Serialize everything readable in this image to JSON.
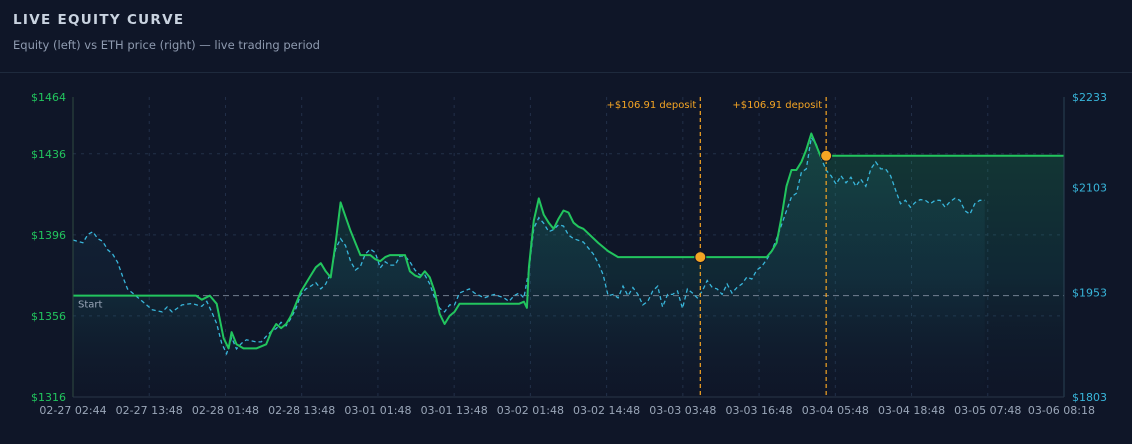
{
  "header": {
    "title": "LIVE EQUITY CURVE",
    "subtitle": "Equity (left) vs ETH price (right) — live trading period"
  },
  "chart_data": {
    "type": "line",
    "colors": {
      "equity": "#22c55e",
      "eth": "#38b6db",
      "deposit": "#f5a524",
      "start_line": "#8a96a8",
      "grid": "#223049"
    },
    "x_ticks": [
      "02-27 02:44",
      "02-27 13:48",
      "02-28 01:48",
      "02-28 13:48",
      "03-01 01:48",
      "03-01 13:48",
      "03-02 01:48",
      "03-02 14:48",
      "03-03 03:48",
      "03-03 16:48",
      "03-04 05:48",
      "03-04 18:48",
      "03-05 07:48",
      "03-06 08:18"
    ],
    "y_left": {
      "ticks": [
        "$1464",
        "$1436",
        "$1396",
        "$1356",
        "$1316"
      ],
      "range": [
        1316,
        1464
      ]
    },
    "y_right": {
      "ticks": [
        "$2233",
        "$2103",
        "$1953",
        "$1803"
      ],
      "range": [
        1803,
        2233
      ]
    },
    "start_label": "Start",
    "start_value": 1366,
    "x_range": [
      0,
      10
    ],
    "deposits": [
      {
        "x": 6.33,
        "label": "+$106.91 deposit",
        "equity": 1385
      },
      {
        "x": 7.6,
        "label": "+$106.91 deposit",
        "equity": 1435
      }
    ],
    "series": [
      {
        "name": "Equity",
        "axis": "left",
        "points": [
          [
            0,
            1366
          ],
          [
            1.24,
            1366
          ],
          [
            1.3,
            1364
          ],
          [
            1.38,
            1366
          ],
          [
            1.45,
            1362
          ],
          [
            1.52,
            1345
          ],
          [
            1.57,
            1340
          ],
          [
            1.6,
            1348
          ],
          [
            1.65,
            1342
          ],
          [
            1.72,
            1340
          ],
          [
            1.85,
            1340
          ],
          [
            1.95,
            1342
          ],
          [
            2.0,
            1348
          ],
          [
            2.05,
            1352
          ],
          [
            2.1,
            1350
          ],
          [
            2.15,
            1352
          ],
          [
            2.2,
            1356
          ],
          [
            2.3,
            1368
          ],
          [
            2.4,
            1376
          ],
          [
            2.45,
            1380
          ],
          [
            2.5,
            1382
          ],
          [
            2.55,
            1378
          ],
          [
            2.6,
            1375
          ],
          [
            2.65,
            1392
          ],
          [
            2.7,
            1412
          ],
          [
            2.75,
            1405
          ],
          [
            2.8,
            1398
          ],
          [
            2.85,
            1392
          ],
          [
            2.9,
            1386
          ],
          [
            3.0,
            1386
          ],
          [
            3.05,
            1384
          ],
          [
            3.1,
            1383
          ],
          [
            3.15,
            1385
          ],
          [
            3.2,
            1386
          ],
          [
            3.35,
            1386
          ],
          [
            3.4,
            1378
          ],
          [
            3.45,
            1376
          ],
          [
            3.5,
            1375
          ],
          [
            3.55,
            1378
          ],
          [
            3.6,
            1375
          ],
          [
            3.65,
            1368
          ],
          [
            3.7,
            1357
          ],
          [
            3.75,
            1352
          ],
          [
            3.8,
            1356
          ],
          [
            3.85,
            1358
          ],
          [
            3.9,
            1362
          ],
          [
            4.3,
            1362
          ],
          [
            4.5,
            1362
          ],
          [
            4.55,
            1363
          ],
          [
            4.58,
            1360
          ],
          [
            4.6,
            1380
          ],
          [
            4.65,
            1403
          ],
          [
            4.7,
            1414
          ],
          [
            4.75,
            1406
          ],
          [
            4.8,
            1402
          ],
          [
            4.85,
            1399
          ],
          [
            4.9,
            1404
          ],
          [
            4.95,
            1408
          ],
          [
            5.0,
            1407
          ],
          [
            5.05,
            1402
          ],
          [
            5.1,
            1400
          ],
          [
            5.15,
            1399
          ],
          [
            5.3,
            1392
          ],
          [
            5.4,
            1388
          ],
          [
            5.5,
            1385
          ],
          [
            5.9,
            1385
          ],
          [
            6.33,
            1385
          ],
          [
            7.0,
            1385
          ],
          [
            7.05,
            1388
          ],
          [
            7.1,
            1392
          ],
          [
            7.15,
            1405
          ],
          [
            7.2,
            1420
          ],
          [
            7.25,
            1428
          ],
          [
            7.3,
            1428
          ],
          [
            7.35,
            1432
          ],
          [
            7.4,
            1438
          ],
          [
            7.45,
            1446
          ],
          [
            7.5,
            1440
          ],
          [
            7.55,
            1434
          ],
          [
            7.6,
            1435
          ],
          [
            10,
            1435
          ]
        ]
      },
      {
        "name": "ETH",
        "axis": "right",
        "points": [
          [
            0,
            2028
          ],
          [
            0.1,
            2024
          ],
          [
            0.15,
            2036
          ],
          [
            0.2,
            2040
          ],
          [
            0.25,
            2030
          ],
          [
            0.3,
            2026
          ],
          [
            0.35,
            2014
          ],
          [
            0.4,
            2008
          ],
          [
            0.45,
            1996
          ],
          [
            0.5,
            1976
          ],
          [
            0.55,
            1958
          ],
          [
            0.6,
            1952
          ],
          [
            0.7,
            1940
          ],
          [
            0.8,
            1928
          ],
          [
            0.9,
            1925
          ],
          [
            0.95,
            1932
          ],
          [
            1.0,
            1925
          ],
          [
            1.05,
            1930
          ],
          [
            1.1,
            1935
          ],
          [
            1.2,
            1937
          ],
          [
            1.3,
            1933
          ],
          [
            1.35,
            1940
          ],
          [
            1.4,
            1925
          ],
          [
            1.45,
            1908
          ],
          [
            1.5,
            1880
          ],
          [
            1.55,
            1865
          ],
          [
            1.6,
            1888
          ],
          [
            1.65,
            1872
          ],
          [
            1.7,
            1880
          ],
          [
            1.75,
            1885
          ],
          [
            1.85,
            1882
          ],
          [
            1.9,
            1882
          ],
          [
            1.95,
            1890
          ],
          [
            2.0,
            1897
          ],
          [
            2.05,
            1901
          ],
          [
            2.1,
            1910
          ],
          [
            2.15,
            1905
          ],
          [
            2.2,
            1916
          ],
          [
            2.25,
            1930
          ],
          [
            2.3,
            1950
          ],
          [
            2.35,
            1958
          ],
          [
            2.4,
            1962
          ],
          [
            2.45,
            1967
          ],
          [
            2.5,
            1958
          ],
          [
            2.55,
            1965
          ],
          [
            2.6,
            1980
          ],
          [
            2.65,
            2015
          ],
          [
            2.7,
            2030
          ],
          [
            2.75,
            2020
          ],
          [
            2.8,
            1998
          ],
          [
            2.85,
            1985
          ],
          [
            2.9,
            1990
          ],
          [
            2.95,
            2008
          ],
          [
            3.0,
            2015
          ],
          [
            3.05,
            2010
          ],
          [
            3.1,
            1988
          ],
          [
            3.15,
            1997
          ],
          [
            3.2,
            1992
          ],
          [
            3.25,
            1992
          ],
          [
            3.3,
            2005
          ],
          [
            3.35,
            2005
          ],
          [
            3.4,
            1997
          ],
          [
            3.45,
            1985
          ],
          [
            3.5,
            1978
          ],
          [
            3.55,
            1978
          ],
          [
            3.6,
            1965
          ],
          [
            3.65,
            1945
          ],
          [
            3.7,
            1930
          ],
          [
            3.75,
            1925
          ],
          [
            3.8,
            1935
          ],
          [
            3.85,
            1935
          ],
          [
            3.9,
            1952
          ],
          [
            4.0,
            1958
          ],
          [
            4.05,
            1952
          ],
          [
            4.15,
            1945
          ],
          [
            4.25,
            1950
          ],
          [
            4.35,
            1945
          ],
          [
            4.4,
            1940
          ],
          [
            4.45,
            1948
          ],
          [
            4.5,
            1952
          ],
          [
            4.55,
            1945
          ],
          [
            4.6,
            1985
          ],
          [
            4.65,
            2045
          ],
          [
            4.7,
            2060
          ],
          [
            4.75,
            2052
          ],
          [
            4.8,
            2040
          ],
          [
            4.85,
            2043
          ],
          [
            4.9,
            2050
          ],
          [
            4.95,
            2048
          ],
          [
            5.0,
            2035
          ],
          [
            5.05,
            2030
          ],
          [
            5.15,
            2025
          ],
          [
            5.25,
            2008
          ],
          [
            5.3,
            1995
          ],
          [
            5.35,
            1978
          ],
          [
            5.4,
            1948
          ],
          [
            5.45,
            1950
          ],
          [
            5.5,
            1945
          ],
          [
            5.55,
            1962
          ],
          [
            5.6,
            1948
          ],
          [
            5.65,
            1960
          ],
          [
            5.7,
            1950
          ],
          [
            5.75,
            1935
          ],
          [
            5.8,
            1940
          ],
          [
            5.85,
            1955
          ],
          [
            5.9,
            1962
          ],
          [
            5.95,
            1932
          ],
          [
            6.0,
            1950
          ],
          [
            6.05,
            1950
          ],
          [
            6.1,
            1955
          ],
          [
            6.15,
            1930
          ],
          [
            6.2,
            1958
          ],
          [
            6.25,
            1952
          ],
          [
            6.3,
            1945
          ],
          [
            6.35,
            1955
          ],
          [
            6.4,
            1970
          ],
          [
            6.45,
            1960
          ],
          [
            6.5,
            1958
          ],
          [
            6.55,
            1950
          ],
          [
            6.6,
            1965
          ],
          [
            6.65,
            1952
          ],
          [
            6.7,
            1960
          ],
          [
            6.75,
            1965
          ],
          [
            6.8,
            1975
          ],
          [
            6.85,
            1972
          ],
          [
            6.9,
            1985
          ],
          [
            6.95,
            1990
          ],
          [
            7.0,
            2000
          ],
          [
            7.05,
            2012
          ],
          [
            7.1,
            2030
          ],
          [
            7.15,
            2050
          ],
          [
            7.2,
            2070
          ],
          [
            7.25,
            2090
          ],
          [
            7.3,
            2095
          ],
          [
            7.35,
            2125
          ],
          [
            7.4,
            2130
          ],
          [
            7.45,
            2175
          ],
          [
            7.5,
            2165
          ],
          [
            7.55,
            2145
          ],
          [
            7.6,
            2128
          ],
          [
            7.65,
            2120
          ],
          [
            7.7,
            2108
          ],
          [
            7.75,
            2120
          ],
          [
            7.8,
            2110
          ],
          [
            7.85,
            2118
          ],
          [
            7.9,
            2105
          ],
          [
            7.95,
            2115
          ],
          [
            8.0,
            2105
          ],
          [
            8.05,
            2130
          ],
          [
            8.1,
            2140
          ],
          [
            8.15,
            2130
          ],
          [
            8.2,
            2130
          ],
          [
            8.25,
            2120
          ],
          [
            8.3,
            2100
          ],
          [
            8.35,
            2080
          ],
          [
            8.4,
            2085
          ],
          [
            8.45,
            2075
          ],
          [
            8.5,
            2082
          ],
          [
            8.55,
            2086
          ],
          [
            8.6,
            2085
          ],
          [
            8.65,
            2080
          ],
          [
            8.7,
            2085
          ],
          [
            8.75,
            2085
          ],
          [
            8.8,
            2075
          ],
          [
            8.85,
            2083
          ],
          [
            8.9,
            2088
          ],
          [
            8.95,
            2085
          ],
          [
            9.0,
            2070
          ],
          [
            9.05,
            2065
          ],
          [
            9.1,
            2080
          ],
          [
            9.15,
            2085
          ],
          [
            9.2,
            2085
          ]
        ]
      }
    ]
  }
}
